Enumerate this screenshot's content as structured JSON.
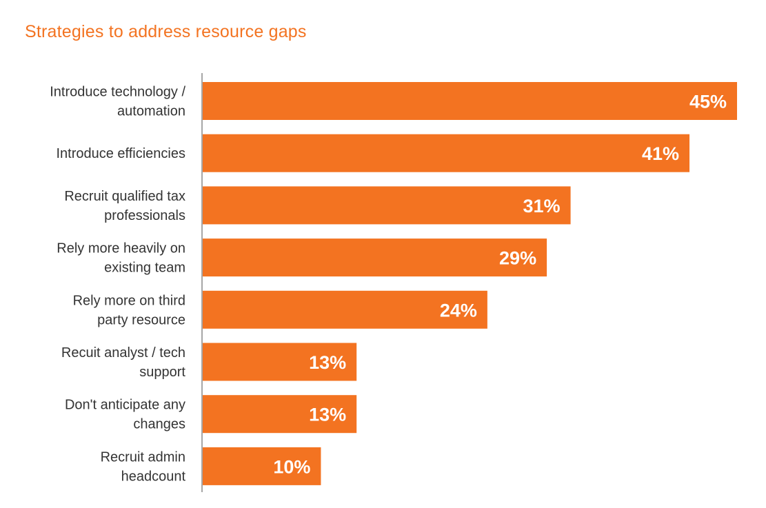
{
  "chart_data": {
    "type": "bar",
    "orientation": "horizontal",
    "title": "Strategies to address resource gaps",
    "categories": [
      [
        "Introduce technology /",
        "automation"
      ],
      [
        "Introduce efficiencies"
      ],
      [
        "Recruit qualified tax",
        "professionals"
      ],
      [
        "Rely more heavily on",
        "existing team"
      ],
      [
        "Rely more on third",
        "party resource"
      ],
      [
        "Recuit analyst / tech",
        "support"
      ],
      [
        "Don't anticipate any",
        "changes"
      ],
      [
        "Recruit admin",
        "headcount"
      ]
    ],
    "values": [
      45,
      41,
      31,
      29,
      24,
      13,
      13,
      10
    ],
    "value_labels": [
      "45%",
      "41%",
      "31%",
      "29%",
      "24%",
      "13%",
      "13%",
      "10%"
    ],
    "xlim": [
      0,
      45
    ],
    "xlabel": "",
    "ylabel": "",
    "grid": false,
    "colors": {
      "bar": "#f37321",
      "axis": "#a6a6a6",
      "title": "#f37321",
      "label": "#333333"
    }
  }
}
